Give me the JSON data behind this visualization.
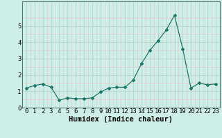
{
  "x": [
    0,
    1,
    2,
    3,
    4,
    5,
    6,
    7,
    8,
    9,
    10,
    11,
    12,
    13,
    14,
    15,
    16,
    17,
    18,
    19,
    20,
    21,
    22,
    23
  ],
  "y": [
    1.2,
    1.35,
    1.45,
    1.25,
    0.45,
    0.6,
    0.55,
    0.55,
    0.6,
    0.95,
    1.2,
    1.25,
    1.25,
    1.7,
    2.7,
    3.5,
    4.1,
    4.75,
    5.65,
    3.6,
    1.2,
    1.5,
    1.4,
    1.45
  ],
  "xlabel": "Humidex (Indice chaleur)",
  "ylim": [
    0,
    6.5
  ],
  "xlim": [
    -0.5,
    23.5
  ],
  "line_color": "#1a7a6a",
  "marker_color": "#1a7a6a",
  "bg_color": "#ceeee8",
  "grid_major_color": "#b8d8d0",
  "grid_minor_color": "#e8c8cc",
  "tick_label_fontsize": 6.5,
  "xlabel_fontsize": 7.5,
  "yticks": [
    0,
    1,
    2,
    3,
    4,
    5
  ],
  "figwidth": 3.2,
  "figheight": 2.0,
  "dpi": 100
}
